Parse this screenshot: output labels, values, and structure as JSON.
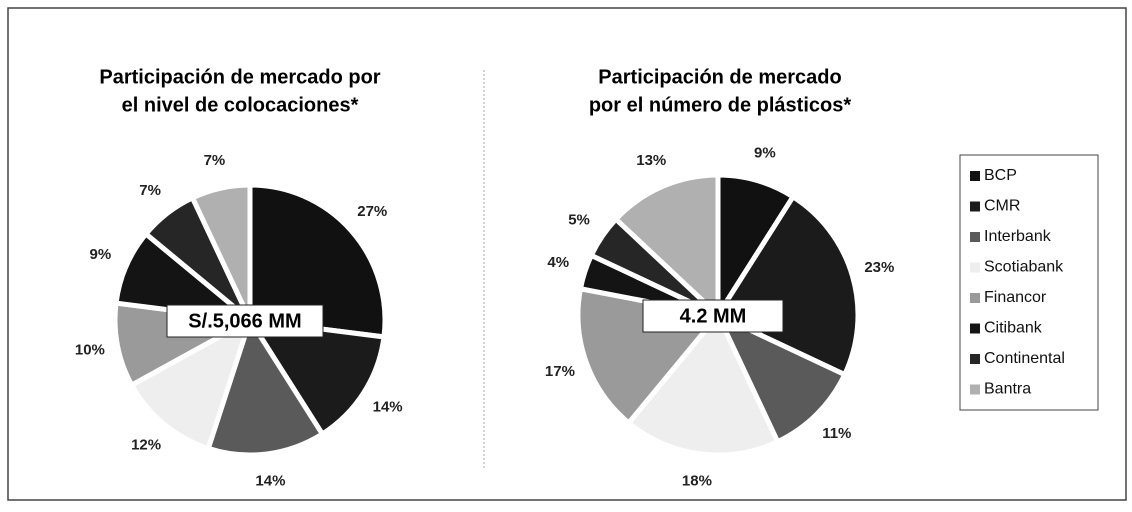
{
  "chart_data": [
    {
      "type": "pie",
      "title": [
        "Participación de mercado por",
        "el nivel de colocaciones*"
      ],
      "categories": [
        "BCP",
        "CMR",
        "Interbank",
        "Scotiabank",
        "Financor",
        "Citibank",
        "Continental",
        "Bantra"
      ],
      "values": [
        27,
        14,
        14,
        12,
        10,
        9,
        7,
        7
      ],
      "value_labels": [
        "27%",
        "14%",
        "14%",
        "12%",
        "10%",
        "9%",
        "7%",
        "7%"
      ],
      "colors": [
        "#111111",
        "#1b1b1b",
        "#5a5a5a",
        "#eeeeee",
        "#9a9a9a",
        "#141414",
        "#262626",
        "#b0b0b0"
      ],
      "annotation": "S/.5,066 MM"
    },
    {
      "type": "pie",
      "title": [
        "Participación de mercado",
        "por el número de plásticos*"
      ],
      "categories": [
        "BCP",
        "CMR",
        "Interbank",
        "Scotiabank",
        "Financor",
        "Citibank",
        "Continental",
        "Bantra"
      ],
      "values": [
        9,
        23,
        11,
        18,
        17,
        4,
        5,
        13
      ],
      "value_labels": [
        "9%",
        "23%",
        "11%",
        "18%",
        "17%",
        "4%",
        "5%",
        "13%"
      ],
      "colors": [
        "#111111",
        "#1b1b1b",
        "#5a5a5a",
        "#eeeeee",
        "#9a9a9a",
        "#141414",
        "#262626",
        "#b0b0b0"
      ],
      "annotation": "4.2 MM"
    }
  ]
}
